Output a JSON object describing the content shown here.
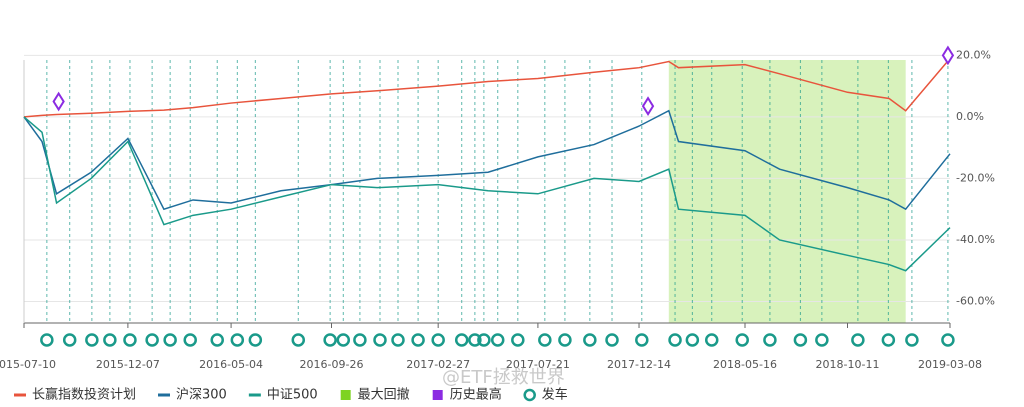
{
  "chart_data": {
    "type": "line",
    "x": [
      "2015-07-10",
      "2015-08-05",
      "2015-08-26",
      "2015-10-15",
      "2015-12-07",
      "2016-01-28",
      "2016-03-10",
      "2016-05-04",
      "2016-07-15",
      "2016-09-26",
      "2016-12-01",
      "2017-02-27",
      "2017-05-10",
      "2017-07-21",
      "2017-10-10",
      "2017-12-14",
      "2018-01-26",
      "2018-02-09",
      "2018-05-16",
      "2018-07-05",
      "2018-10-11",
      "2018-12-10",
      "2019-01-03",
      "2019-03-08"
    ],
    "series": [
      {
        "name": "长赢指数投资计划",
        "color": "#e8543c",
        "values": [
          0,
          0.5,
          0.8,
          1.2,
          1.8,
          2.2,
          3,
          4.5,
          6,
          7.5,
          8.5,
          10,
          11.5,
          12.5,
          14.5,
          16,
          18,
          16,
          17,
          14,
          8,
          6,
          2,
          19
        ]
      },
      {
        "name": "沪深300",
        "color": "#1f6e9c",
        "values": [
          0,
          -8,
          -25,
          -18,
          -7,
          -30,
          -27,
          -28,
          -24,
          -22,
          -20,
          -19,
          -18,
          -13,
          -9,
          -3,
          2,
          -8,
          -11,
          -17,
          -23,
          -27,
          -30,
          -12
        ]
      },
      {
        "name": "中证500",
        "color": "#1a9a8a",
        "values": [
          0,
          -5,
          -28,
          -20,
          -8,
          -35,
          -32,
          -30,
          -26,
          -22,
          -23,
          -22,
          -24,
          -25,
          -20,
          -21,
          -17,
          -30,
          -32,
          -40,
          -45,
          -48,
          -50,
          -36
        ]
      }
    ],
    "drawdown": {
      "name": "最大回撤",
      "color": "#7ed321",
      "start": "2018-01-26",
      "end": "2019-01-03"
    },
    "highs": {
      "name": "历史最高",
      "color": "#8b2be2",
      "x": [
        "2015-08-29",
        "2017-12-27",
        "2019-03-05"
      ],
      "values": [
        5,
        3.5,
        20
      ]
    },
    "events": {
      "name": "发车",
      "color": "#1a9a8a",
      "x": [
        "2015-08-12",
        "2015-09-14",
        "2015-10-16",
        "2015-11-11",
        "2015-12-10",
        "2016-01-11",
        "2016-02-06",
        "2016-03-06",
        "2016-04-14",
        "2016-05-13",
        "2016-06-08",
        "2016-08-09",
        "2016-09-24",
        "2016-10-13",
        "2016-11-06",
        "2016-12-05",
        "2016-12-31",
        "2017-01-29",
        "2017-02-27",
        "2017-04-02",
        "2017-04-21",
        "2017-05-04",
        "2017-05-24",
        "2017-06-22",
        "2017-07-31",
        "2017-08-29",
        "2017-10-04",
        "2017-11-05",
        "2017-12-18",
        "2018-02-04",
        "2018-03-01",
        "2018-03-29",
        "2018-05-12",
        "2018-06-21",
        "2018-08-04",
        "2018-09-04",
        "2018-10-26",
        "2018-12-09",
        "2019-01-12",
        "2019-03-05"
      ]
    },
    "xlim": [
      "2015-07-10",
      "2019-03-08"
    ],
    "xticks": [
      "2015-07-10",
      "2015-12-07",
      "2016-05-04",
      "2016-09-26",
      "2017-02-27",
      "2017-07-21",
      "2017-12-14",
      "2018-05-16",
      "2018-10-11",
      "2019-03-08"
    ],
    "ylim": [
      -67,
      25
    ],
    "yticks": [
      {
        "value": 20,
        "label": "20.0%"
      },
      {
        "value": 0,
        "label": "0.0%"
      },
      {
        "value": -20,
        "label": "-20.0%"
      },
      {
        "value": -40,
        "label": "-40.0%"
      },
      {
        "value": -60,
        "label": "-60.0%"
      }
    ],
    "grid": true,
    "watermark": "@ETF拯救世界"
  }
}
